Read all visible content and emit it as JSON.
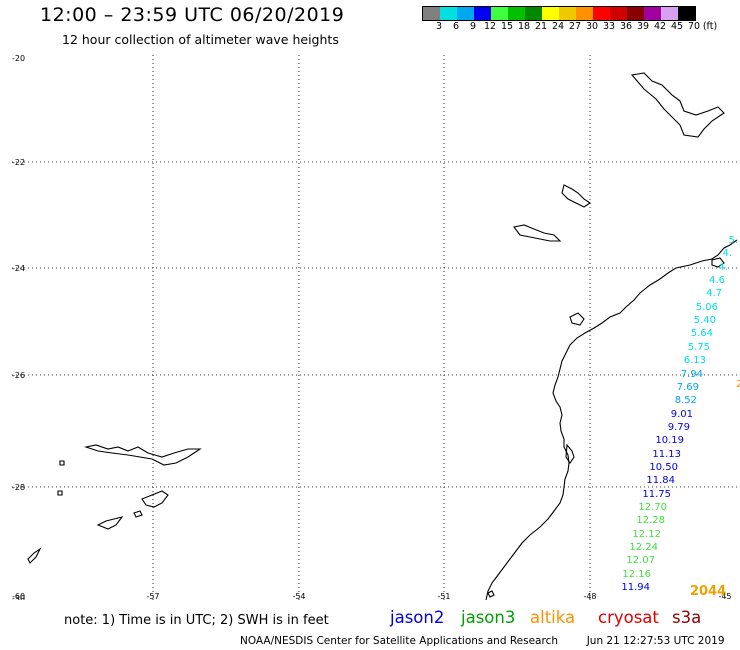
{
  "header": {
    "title": "12:00 – 23:59 UTC 06/20/2019",
    "subtitle": "12 hour collection of altimeter wave heights"
  },
  "legend": {
    "unit": "(ft)",
    "bins": [
      {
        "label": "3",
        "color": "#808080"
      },
      {
        "label": "6",
        "color": "#00e0e0"
      },
      {
        "label": "9",
        "color": "#00a8f0"
      },
      {
        "label": "12",
        "color": "#0000f0"
      },
      {
        "label": "15",
        "color": "#40ff40"
      },
      {
        "label": "18",
        "color": "#00c000"
      },
      {
        "label": "21",
        "color": "#008800"
      },
      {
        "label": "24",
        "color": "#ffff00"
      },
      {
        "label": "27",
        "color": "#f0c800"
      },
      {
        "label": "30",
        "color": "#ff9000"
      },
      {
        "label": "33",
        "color": "#ff0000"
      },
      {
        "label": "36",
        "color": "#d00000"
      },
      {
        "label": "39",
        "color": "#880000"
      },
      {
        "label": "42",
        "color": "#a000a0"
      },
      {
        "label": "45",
        "color": "#d8a0f0"
      },
      {
        "label": "70",
        "color": "#000000"
      }
    ]
  },
  "map": {
    "lat_labels": [
      "-20",
      "-22",
      "-24",
      "-26",
      "-28",
      "-30"
    ],
    "lon_labels": [
      "-60",
      "-57",
      "-54",
      "-51",
      "-48",
      "-45"
    ],
    "wave_labels": [
      {
        "text": "5.",
        "color": "#00e0e0"
      },
      {
        "text": "4.",
        "color": "#00e0e0"
      },
      {
        "text": "4.",
        "color": "#00e0e0"
      },
      {
        "text": "4.6",
        "color": "#00e0e0"
      },
      {
        "text": "4.7",
        "color": "#00e0e0"
      },
      {
        "text": "5.06",
        "color": "#00e0e0"
      },
      {
        "text": "5.40",
        "color": "#00e0e0"
      },
      {
        "text": "5.64",
        "color": "#00e0e0"
      },
      {
        "text": "5.75",
        "color": "#00e0e0"
      },
      {
        "text": "6.13",
        "color": "#00e0e0"
      },
      {
        "text": "7.94",
        "color": "#00a8f0"
      },
      {
        "text": "7.69",
        "color": "#00a8f0"
      },
      {
        "text": "8.52",
        "color": "#00a8f0"
      },
      {
        "text": "9.01",
        "color": "#0000f0"
      },
      {
        "text": "9.79",
        "color": "#0000f0"
      },
      {
        "text": "10.19",
        "color": "#0000f0"
      },
      {
        "text": "11.13",
        "color": "#0000f0"
      },
      {
        "text": "10.50",
        "color": "#0000f0"
      },
      {
        "text": "11.84",
        "color": "#0000f0"
      },
      {
        "text": "11.75",
        "color": "#0000f0"
      },
      {
        "text": "12.70",
        "color": "#40e040"
      },
      {
        "text": "12.28",
        "color": "#40e040"
      },
      {
        "text": "12.12",
        "color": "#40e040"
      },
      {
        "text": "12.24",
        "color": "#40e040"
      },
      {
        "text": "12.07",
        "color": "#40e040"
      },
      {
        "text": "12.16",
        "color": "#40e040"
      },
      {
        "text": "11.94",
        "color": "#0000f0"
      }
    ],
    "side_label": {
      "text": "2",
      "color": "#ff9000"
    },
    "corner_label": {
      "text": "2044",
      "color": "#f0a000"
    }
  },
  "footer": {
    "note": "note: 1) Time is in UTC; 2) SWH is in feet",
    "satellites": [
      {
        "name": "jason2",
        "color": "#0000e0"
      },
      {
        "name": "jason3",
        "color": "#00a000"
      },
      {
        "name": "altika",
        "color": "#ff9000"
      },
      {
        "name": "cryosat",
        "color": "#e00000"
      },
      {
        "name": "s3a",
        "color": "#8b0000"
      }
    ],
    "credit": "NOAA/NESDIS Center for Satellite Applications and Research",
    "timestamp": "Jun 21 12:27:53 UTC 2019"
  }
}
